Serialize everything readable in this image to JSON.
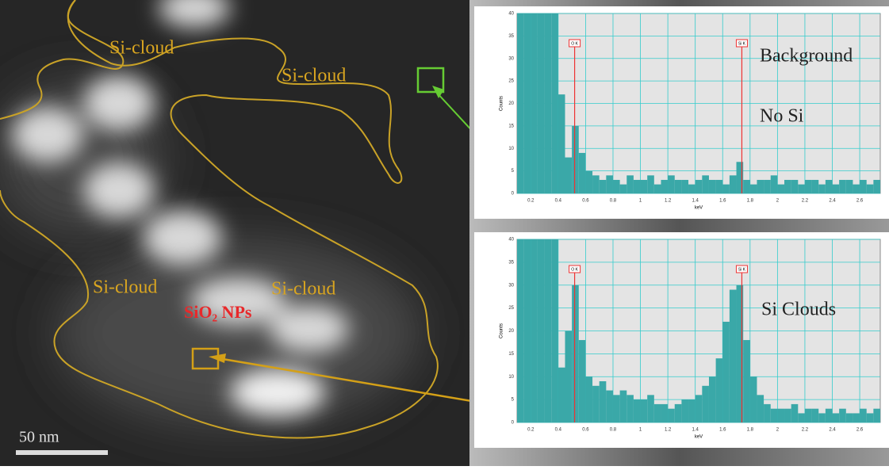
{
  "image": {
    "labels": [
      "Si-cloud",
      "Si-cloud",
      "Si-cloud",
      "Si-cloud"
    ],
    "particles": "SiO₂ NPs",
    "scale": "50 nm"
  },
  "chart_data": [
    {
      "type": "histogram",
      "xlabel": "keV",
      "ylabel": "Counts",
      "color": "#3aa8a8",
      "grid": true,
      "annotations": [
        "Background",
        "No Si"
      ],
      "markers": [
        {
          "label": "O K",
          "value": 0.52
        },
        {
          "label": "Si K",
          "value": 1.74
        }
      ],
      "xlim": [
        0.1,
        2.75
      ],
      "ylim": [
        0,
        40
      ],
      "xticks": [
        0.2,
        0.4,
        0.6,
        0.8,
        1.0,
        1.2,
        1.4,
        1.6,
        1.8,
        2.0,
        2.2,
        2.4,
        2.6
      ],
      "yticks": [
        0,
        5,
        10,
        15,
        20,
        25,
        30,
        35,
        40
      ],
      "bins": [
        0.1,
        0.15,
        0.2,
        0.25,
        0.3,
        0.35,
        0.4,
        0.45,
        0.5,
        0.55,
        0.6,
        0.65,
        0.7,
        0.75,
        0.8,
        0.85,
        0.9,
        0.95,
        1.0,
        1.05,
        1.1,
        1.15,
        1.2,
        1.25,
        1.3,
        1.35,
        1.4,
        1.45,
        1.5,
        1.55,
        1.6,
        1.65,
        1.7,
        1.75,
        1.8,
        1.85,
        1.9,
        1.95,
        2.0,
        2.05,
        2.1,
        2.15,
        2.2,
        2.25,
        2.3,
        2.35,
        2.4,
        2.45,
        2.5,
        2.55,
        2.6,
        2.65,
        2.7,
        2.75
      ],
      "values": [
        40,
        40,
        40,
        40,
        40,
        40,
        22,
        8,
        15,
        9,
        5,
        4,
        3,
        4,
        3,
        2,
        4,
        3,
        3,
        4,
        2,
        3,
        4,
        3,
        3,
        2,
        3,
        4,
        3,
        3,
        2,
        4,
        7,
        3,
        2,
        3,
        3,
        4,
        2,
        3,
        3,
        2,
        3,
        3,
        2,
        3,
        2,
        3,
        3,
        2,
        3,
        2,
        3
      ]
    },
    {
      "type": "histogram",
      "xlabel": "keV",
      "ylabel": "Counts",
      "color": "#3aa8a8",
      "grid": true,
      "annotations": [
        "Si Clouds"
      ],
      "markers": [
        {
          "label": "O K",
          "value": 0.52
        },
        {
          "label": "Si K",
          "value": 1.74
        }
      ],
      "xlim": [
        0.1,
        2.75
      ],
      "ylim": [
        0,
        40
      ],
      "xticks": [
        0.2,
        0.4,
        0.6,
        0.8,
        1.0,
        1.2,
        1.4,
        1.6,
        1.8,
        2.0,
        2.2,
        2.4,
        2.6
      ],
      "yticks": [
        0,
        5,
        10,
        15,
        20,
        25,
        30,
        35,
        40
      ],
      "bins": [
        0.1,
        0.15,
        0.2,
        0.25,
        0.3,
        0.35,
        0.4,
        0.45,
        0.5,
        0.55,
        0.6,
        0.65,
        0.7,
        0.75,
        0.8,
        0.85,
        0.9,
        0.95,
        1.0,
        1.05,
        1.1,
        1.15,
        1.2,
        1.25,
        1.3,
        1.35,
        1.4,
        1.45,
        1.5,
        1.55,
        1.6,
        1.65,
        1.7,
        1.75,
        1.8,
        1.85,
        1.9,
        1.95,
        2.0,
        2.05,
        2.1,
        2.15,
        2.2,
        2.25,
        2.3,
        2.35,
        2.4,
        2.45,
        2.5,
        2.55,
        2.6,
        2.65,
        2.7,
        2.75
      ],
      "values": [
        40,
        40,
        40,
        40,
        40,
        40,
        12,
        20,
        30,
        18,
        10,
        8,
        9,
        7,
        6,
        7,
        6,
        5,
        5,
        6,
        4,
        4,
        3,
        4,
        5,
        5,
        6,
        8,
        10,
        14,
        22,
        29,
        30,
        18,
        10,
        6,
        4,
        3,
        3,
        3,
        4,
        2,
        3,
        3,
        2,
        3,
        2,
        3,
        2,
        2,
        3,
        2,
        3
      ]
    }
  ]
}
